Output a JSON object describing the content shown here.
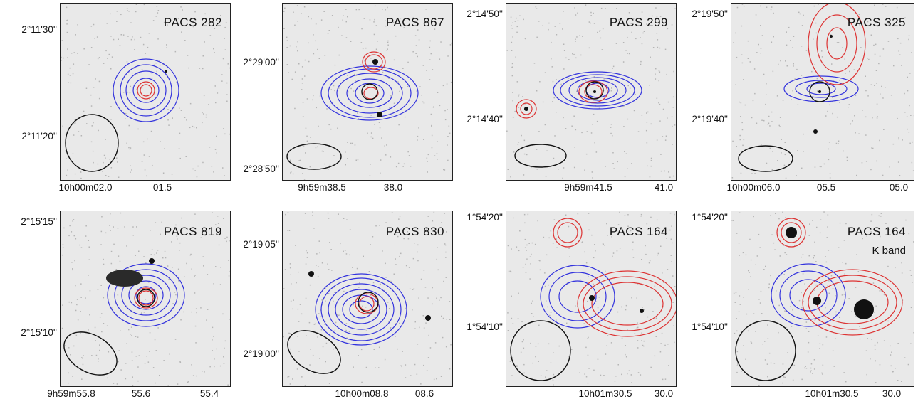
{
  "panels": [
    {
      "title": "PACS 282",
      "subtitle": "",
      "ylabels": [
        "2°11'30''",
        "2°11'20''"
      ],
      "xlabels": [
        "10h00m02.0",
        "01.5"
      ]
    },
    {
      "title": "PACS 867",
      "subtitle": "",
      "ylabels": [
        "2°29'00''",
        "2°28'50''"
      ],
      "xlabels": [
        "9h59m38.5",
        "38.0"
      ]
    },
    {
      "title": "PACS 299",
      "subtitle": "",
      "ylabels": [
        "2°14'50''",
        "2°14'40''"
      ],
      "xlabels": [
        "9h59m41.5",
        "41.0"
      ]
    },
    {
      "title": "PACS 325",
      "subtitle": "",
      "ylabels": [
        "2°19'50''",
        "2°19'40''"
      ],
      "xlabels": [
        "10h00m06.0",
        "05.5",
        "05.0"
      ]
    },
    {
      "title": "PACS 819",
      "subtitle": "",
      "ylabels": [
        "2°15'15''",
        "2°15'10''"
      ],
      "xlabels": [
        "9h59m55.8",
        "55.6",
        "55.4"
      ]
    },
    {
      "title": "PACS 830",
      "subtitle": "",
      "ylabels": [
        "2°19'05''",
        "2°19'00''"
      ],
      "xlabels": [
        "10h00m08.8",
        "08.6"
      ]
    },
    {
      "title": "PACS 164",
      "subtitle": "",
      "ylabels": [
        "1°54'20''",
        "1°54'10''"
      ],
      "xlabels": [
        "10h01m30.5",
        "30.0"
      ]
    },
    {
      "title": "PACS 164",
      "subtitle": "K band",
      "ylabels": [
        "1°54'20''",
        "1°54'10''"
      ],
      "xlabels": [
        "10h01m30.5",
        "30.0"
      ]
    }
  ],
  "colors": {
    "blue_contour": "#3333dd",
    "red_contour": "#dd3333",
    "beam": "#111111",
    "background": "#e9e9e9"
  }
}
